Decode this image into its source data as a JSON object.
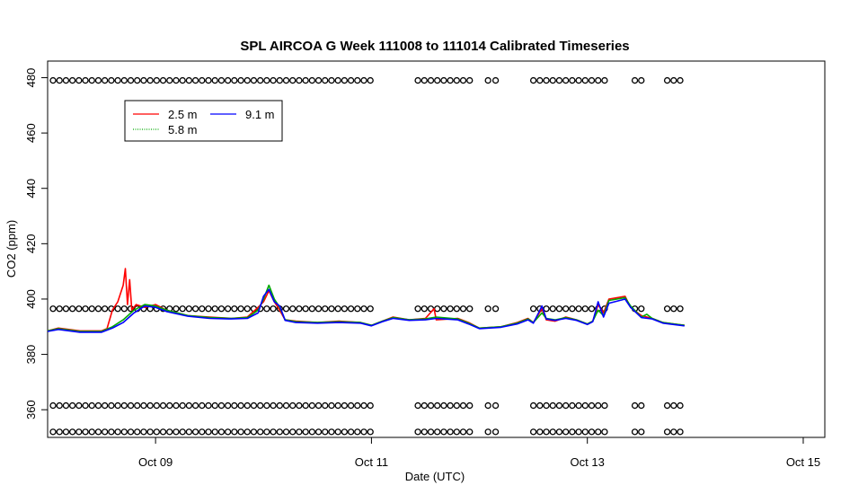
{
  "chart_data": {
    "type": "line",
    "title": "SPL AIRCOA G  Week 111008 to 111014  Calibrated Timeseries",
    "xlabel": "Date (UTC)",
    "ylabel": "CO2 (ppm)",
    "xlim": [
      8.0,
      15.2
    ],
    "ylim": [
      350.0,
      486.0
    ],
    "xtick_values": [
      9,
      11,
      13,
      15
    ],
    "xtick_labels": [
      "Oct 09",
      "Oct 11",
      "Oct 13",
      "Oct 15"
    ],
    "ytick_values": [
      360,
      380,
      400,
      420,
      440,
      460,
      480
    ],
    "ytick_labels": [
      "360",
      "380",
      "400",
      "420",
      "440",
      "460",
      "480"
    ],
    "legend_position": "top-left",
    "series": [
      {
        "name": "2.5 m",
        "color": "#ff0000",
        "points": [
          [
            8.0,
            388.5
          ],
          [
            8.1,
            389.5
          ],
          [
            8.3,
            388.5
          ],
          [
            8.5,
            388.5
          ],
          [
            8.55,
            389.3
          ],
          [
            8.6,
            396.0
          ],
          [
            8.65,
            399.0
          ],
          [
            8.7,
            405.0
          ],
          [
            8.72,
            411.0
          ],
          [
            8.74,
            398.0
          ],
          [
            8.76,
            407.0
          ],
          [
            8.78,
            396.0
          ],
          [
            8.82,
            398.0
          ],
          [
            8.9,
            397.0
          ],
          [
            9.0,
            398.0
          ],
          [
            9.1,
            396.0
          ],
          [
            9.3,
            394.0
          ],
          [
            9.5,
            393.5
          ],
          [
            9.7,
            393.0
          ],
          [
            9.85,
            393.5
          ],
          [
            9.95,
            397.0
          ],
          [
            10.0,
            399.0
          ],
          [
            10.05,
            403.0
          ],
          [
            10.1,
            399.0
          ],
          [
            10.15,
            396.0
          ],
          [
            10.2,
            392.5
          ],
          [
            10.3,
            392.0
          ],
          [
            10.5,
            391.5
          ],
          [
            10.7,
            392.0
          ],
          [
            10.9,
            391.5
          ],
          [
            11.0,
            390.5
          ],
          [
            11.1,
            392.0
          ],
          [
            11.2,
            393.5
          ],
          [
            11.35,
            392.5
          ],
          [
            11.5,
            393.0
          ],
          [
            11.58,
            396.5
          ],
          [
            11.6,
            392.5
          ],
          [
            11.8,
            393.0
          ],
          [
            11.9,
            391.5
          ],
          [
            12.0,
            389.5
          ],
          [
            12.2,
            390.0
          ],
          [
            12.35,
            391.5
          ],
          [
            12.45,
            393.0
          ],
          [
            12.5,
            391.5
          ],
          [
            12.58,
            396.5
          ],
          [
            12.62,
            392.5
          ],
          [
            12.7,
            392.0
          ],
          [
            12.8,
            393.5
          ],
          [
            12.9,
            392.5
          ],
          [
            13.0,
            391.0
          ],
          [
            13.05,
            392.0
          ],
          [
            13.1,
            398.0
          ],
          [
            13.15,
            395.0
          ],
          [
            13.2,
            400.0
          ],
          [
            13.35,
            401.0
          ],
          [
            13.4,
            397.0
          ],
          [
            13.5,
            394.0
          ],
          [
            13.6,
            393.0
          ],
          [
            13.7,
            391.5
          ],
          [
            13.8,
            391.0
          ],
          [
            13.9,
            390.5
          ]
        ]
      },
      {
        "name": "5.8 m",
        "color": "#00aa00",
        "points": [
          [
            8.0,
            388.5
          ],
          [
            8.1,
            389.3
          ],
          [
            8.3,
            388.3
          ],
          [
            8.5,
            388.3
          ],
          [
            8.6,
            390.0
          ],
          [
            8.7,
            392.5
          ],
          [
            8.8,
            396.0
          ],
          [
            8.9,
            398.0
          ],
          [
            9.0,
            397.5
          ],
          [
            9.1,
            396.0
          ],
          [
            9.3,
            394.0
          ],
          [
            9.5,
            393.3
          ],
          [
            9.7,
            393.0
          ],
          [
            9.85,
            393.3
          ],
          [
            9.95,
            396.0
          ],
          [
            10.0,
            400.0
          ],
          [
            10.05,
            405.0
          ],
          [
            10.1,
            400.0
          ],
          [
            10.15,
            397.0
          ],
          [
            10.2,
            392.5
          ],
          [
            10.3,
            391.8
          ],
          [
            10.5,
            391.5
          ],
          [
            10.7,
            391.8
          ],
          [
            10.9,
            391.5
          ],
          [
            11.0,
            390.5
          ],
          [
            11.1,
            392.0
          ],
          [
            11.2,
            393.3
          ],
          [
            11.35,
            392.5
          ],
          [
            11.5,
            392.8
          ],
          [
            11.6,
            393.5
          ],
          [
            11.8,
            392.8
          ],
          [
            11.9,
            391.3
          ],
          [
            12.0,
            389.5
          ],
          [
            12.2,
            390.0
          ],
          [
            12.35,
            391.3
          ],
          [
            12.45,
            392.8
          ],
          [
            12.5,
            391.5
          ],
          [
            12.58,
            395.0
          ],
          [
            12.62,
            393.0
          ],
          [
            12.7,
            392.5
          ],
          [
            12.8,
            393.3
          ],
          [
            12.9,
            392.5
          ],
          [
            13.0,
            391.0
          ],
          [
            13.05,
            392.0
          ],
          [
            13.1,
            396.0
          ],
          [
            13.15,
            394.0
          ],
          [
            13.2,
            399.5
          ],
          [
            13.35,
            400.5
          ],
          [
            13.4,
            397.5
          ],
          [
            13.5,
            393.5
          ],
          [
            13.55,
            394.5
          ],
          [
            13.6,
            393.0
          ],
          [
            13.7,
            391.5
          ],
          [
            13.8,
            391.0
          ],
          [
            13.9,
            390.5
          ]
        ]
      },
      {
        "name": "9.1 m",
        "color": "#0000ff",
        "points": [
          [
            8.0,
            388.3
          ],
          [
            8.1,
            389.0
          ],
          [
            8.3,
            388.0
          ],
          [
            8.5,
            388.0
          ],
          [
            8.6,
            389.5
          ],
          [
            8.7,
            391.5
          ],
          [
            8.8,
            395.0
          ],
          [
            8.9,
            397.5
          ],
          [
            9.0,
            397.0
          ],
          [
            9.1,
            395.5
          ],
          [
            9.3,
            393.8
          ],
          [
            9.5,
            393.0
          ],
          [
            9.7,
            392.8
          ],
          [
            9.85,
            393.0
          ],
          [
            9.95,
            395.0
          ],
          [
            10.0,
            401.0
          ],
          [
            10.05,
            403.5
          ],
          [
            10.1,
            399.0
          ],
          [
            10.15,
            397.5
          ],
          [
            10.2,
            392.3
          ],
          [
            10.3,
            391.5
          ],
          [
            10.5,
            391.3
          ],
          [
            10.7,
            391.5
          ],
          [
            10.9,
            391.3
          ],
          [
            11.0,
            390.3
          ],
          [
            11.1,
            391.8
          ],
          [
            11.2,
            393.0
          ],
          [
            11.35,
            392.3
          ],
          [
            11.5,
            392.5
          ],
          [
            11.6,
            393.0
          ],
          [
            11.8,
            392.5
          ],
          [
            11.9,
            391.0
          ],
          [
            12.0,
            389.3
          ],
          [
            12.2,
            389.8
          ],
          [
            12.35,
            391.0
          ],
          [
            12.45,
            392.5
          ],
          [
            12.5,
            391.3
          ],
          [
            12.58,
            397.5
          ],
          [
            12.62,
            392.8
          ],
          [
            12.7,
            392.3
          ],
          [
            12.8,
            393.0
          ],
          [
            12.9,
            392.3
          ],
          [
            13.0,
            390.8
          ],
          [
            13.05,
            391.8
          ],
          [
            13.1,
            399.0
          ],
          [
            13.15,
            393.5
          ],
          [
            13.2,
            398.5
          ],
          [
            13.35,
            400.0
          ],
          [
            13.4,
            397.0
          ],
          [
            13.5,
            393.3
          ],
          [
            13.6,
            392.8
          ],
          [
            13.7,
            391.3
          ],
          [
            13.8,
            390.8
          ],
          [
            13.9,
            390.3
          ]
        ]
      }
    ],
    "flag_marker_rows_ppm": [
      479.0,
      396.5,
      361.5,
      352.0
    ],
    "flag_marker_x": [
      8.05,
      8.11,
      8.17,
      8.23,
      8.29,
      8.35,
      8.41,
      8.47,
      8.53,
      8.59,
      8.65,
      8.71,
      8.77,
      8.83,
      8.89,
      8.95,
      9.01,
      9.07,
      9.13,
      9.19,
      9.25,
      9.31,
      9.37,
      9.43,
      9.49,
      9.55,
      9.61,
      9.67,
      9.73,
      9.79,
      9.85,
      9.91,
      9.97,
      10.03,
      10.09,
      10.15,
      10.21,
      10.27,
      10.33,
      10.39,
      10.45,
      10.51,
      10.57,
      10.63,
      10.69,
      10.75,
      10.81,
      10.87,
      10.93,
      10.99,
      11.43,
      11.49,
      11.55,
      11.61,
      11.67,
      11.73,
      11.79,
      11.85,
      11.91,
      12.08,
      12.15,
      12.5,
      12.56,
      12.62,
      12.68,
      12.74,
      12.8,
      12.86,
      12.92,
      12.98,
      13.04,
      13.1,
      13.16,
      13.44,
      13.5,
      13.74,
      13.8,
      13.86
    ]
  },
  "legend": {
    "items": [
      "2.5 m",
      "5.8 m",
      "9.1 m"
    ]
  }
}
